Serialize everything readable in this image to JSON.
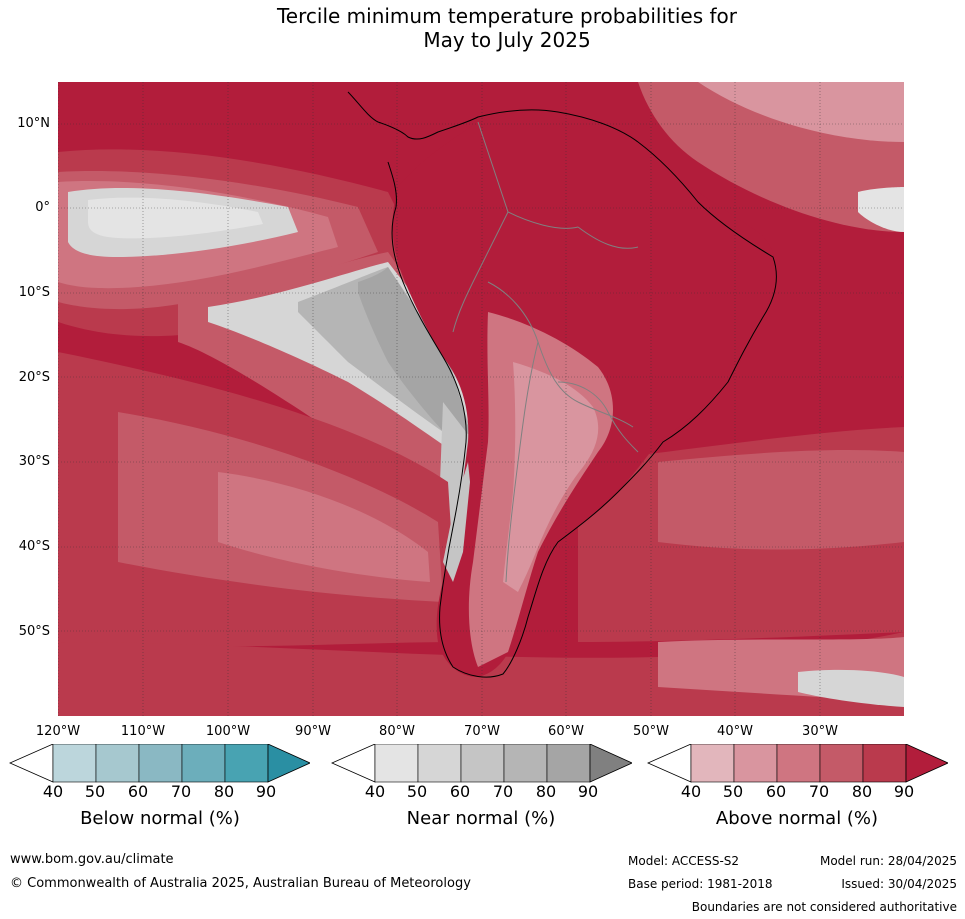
{
  "title_line1": "Tercile minimum temperature probabilities for",
  "title_line2": "May to July 2025",
  "lat_labels": [
    "10°N",
    "0°",
    "10°S",
    "20°S",
    "30°S",
    "40°S",
    "50°S"
  ],
  "lon_labels": [
    "120°W",
    "110°W",
    "100°W",
    "90°W",
    "80°W",
    "70°W",
    "60°W",
    "50°W",
    "40°W",
    "30°W"
  ],
  "colorbars": [
    {
      "title": "Below normal (%)",
      "ticks": [
        "40",
        "50",
        "60",
        "70",
        "80",
        "90"
      ],
      "colors": [
        "#ffffff",
        "#bcd6dc",
        "#a6c8cf",
        "#8ab8c3",
        "#6caebb",
        "#48a3b2",
        "#2a8fa3"
      ]
    },
    {
      "title": "Near normal (%)",
      "ticks": [
        "40",
        "50",
        "60",
        "70",
        "80",
        "90"
      ],
      "colors": [
        "#ffffff",
        "#e4e4e4",
        "#d6d6d6",
        "#c5c5c5",
        "#b5b5b5",
        "#a5a5a5",
        "#808080"
      ]
    },
    {
      "title": "Above normal (%)",
      "ticks": [
        "40",
        "50",
        "60",
        "70",
        "80",
        "90"
      ],
      "colors": [
        "#ffffff",
        "#e2b6bc",
        "#d9959f",
        "#cf7581",
        "#c45a68",
        "#ba3a4d",
        "#b21d3b"
      ]
    }
  ],
  "map_colors": {
    "above_90": "#b21d3b",
    "above_80": "#ba3a4d",
    "above_70": "#c45a68",
    "above_60": "#cf7581",
    "above_50": "#d9959f",
    "above_40": "#e2b6bc",
    "near_40": "#e4e4e4",
    "near_50": "#d6d6d6",
    "near_60": "#c5c5c5",
    "near_70": "#b5b5b5",
    "near_80": "#a5a5a5",
    "coast": "#000000",
    "border": "#808080"
  },
  "footer": {
    "url": "www.bom.gov.au/climate",
    "copyright": "© Commonwealth of Australia 2025, Australian Bureau of Meteorology",
    "model": "Model: ACCESS-S2",
    "model_run": "Model run: 28/04/2025",
    "base_period": "Base period: 1981-2018",
    "issued": "Issued: 30/04/2025",
    "boundaries": "Boundaries are not considered authoritative"
  }
}
